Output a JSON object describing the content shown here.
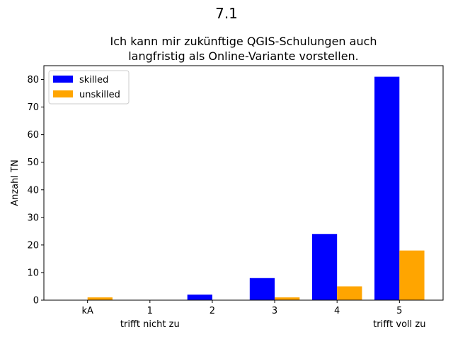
{
  "chart_data": {
    "type": "bar",
    "suptitle": "7.1",
    "title_lines": [
      "Ich kann mir zukünftige QGIS-Schulungen auch",
      "langfristig als Online-Variante vorstellen."
    ],
    "xlabel": "",
    "ylabel": "Anzahl TN",
    "categories": [
      "kA",
      "1",
      "2",
      "3",
      "4",
      "5"
    ],
    "category_sublabels": [
      "",
      "trifft nicht zu",
      "",
      "",
      "",
      "trifft voll zu"
    ],
    "series": [
      {
        "name": "skilled",
        "color": "#0000ff",
        "values": [
          0,
          0,
          2,
          8,
          24,
          81
        ]
      },
      {
        "name": "unskilled",
        "color": "#ffa500",
        "values": [
          1,
          0,
          0,
          1,
          5,
          18
        ]
      }
    ],
    "ylim": [
      0,
      85
    ],
    "yticks": [
      0,
      10,
      20,
      30,
      40,
      50,
      60,
      70,
      80
    ],
    "grid": false,
    "legend_position": "top-left"
  }
}
